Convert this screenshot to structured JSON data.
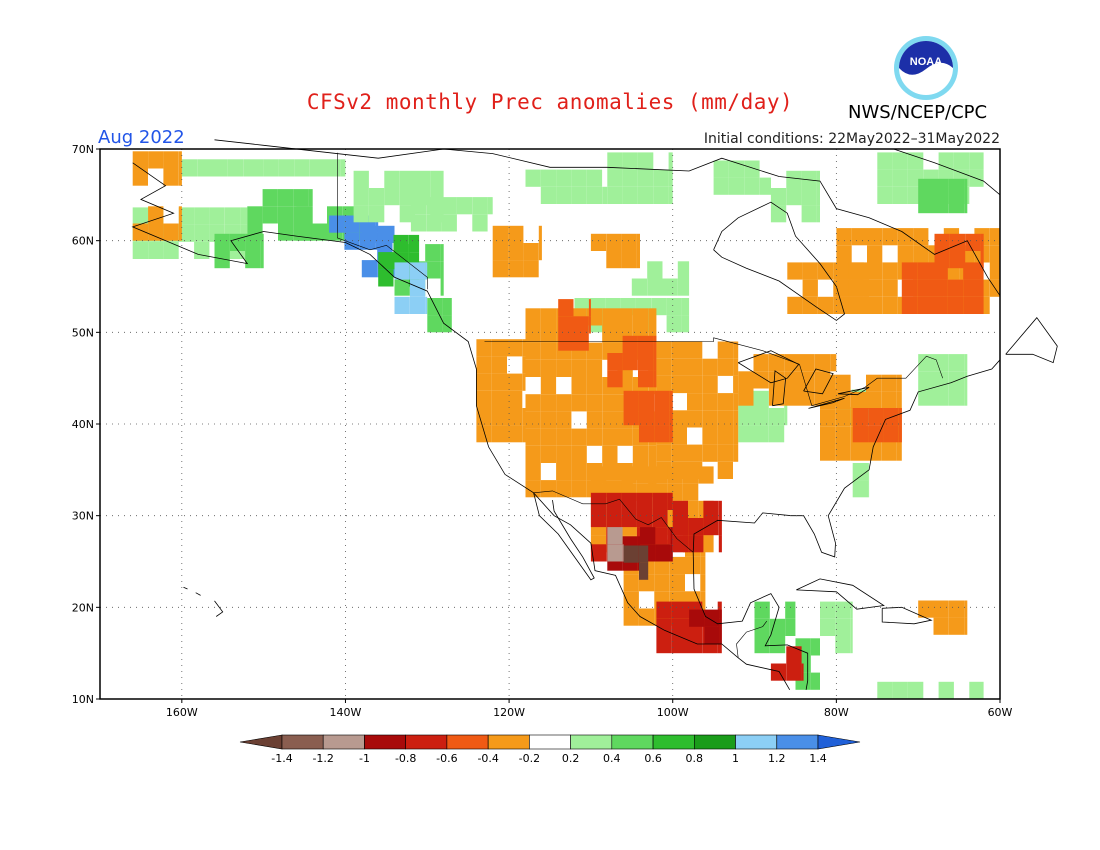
{
  "title": "CFSv2 monthly Prec anomalies (mm/day)",
  "month": "Aug 2022",
  "initial_conditions": "Initial conditions: 22May2022–31May2022",
  "organization": "NWS/NCEP/CPC",
  "logo_text": "NOAA",
  "map": {
    "lon_range": [
      -170,
      -60
    ],
    "lat_range": [
      10,
      70
    ],
    "lat_ticks": [
      "70N",
      "60N",
      "50N",
      "40N",
      "30N",
      "20N",
      "10N"
    ],
    "lon_ticks": [
      "160W",
      "140W",
      "120W",
      "100W",
      "80W",
      "60W"
    ],
    "gridlines": "dotted"
  },
  "colorbar": {
    "labels": [
      "-1.4",
      "-1.2",
      "-1",
      "-0.8",
      "-0.6",
      "-0.4",
      "-0.2",
      "0.2",
      "0.4",
      "0.6",
      "0.8",
      "1",
      "1.2",
      "1.4"
    ],
    "colors": [
      "#6b4033",
      "#8a5e50",
      "#b89a90",
      "#a80a0a",
      "#cc1f10",
      "#f05a14",
      "#f59a1a",
      "#ffffff",
      "#a0f09a",
      "#5fd85f",
      "#2ebd2e",
      "#1a9c1a",
      "#8ccff5",
      "#4a8fe8",
      "#2060d8"
    ]
  },
  "colors": {
    "title": "#e0201a",
    "month": "#2255e8"
  }
}
